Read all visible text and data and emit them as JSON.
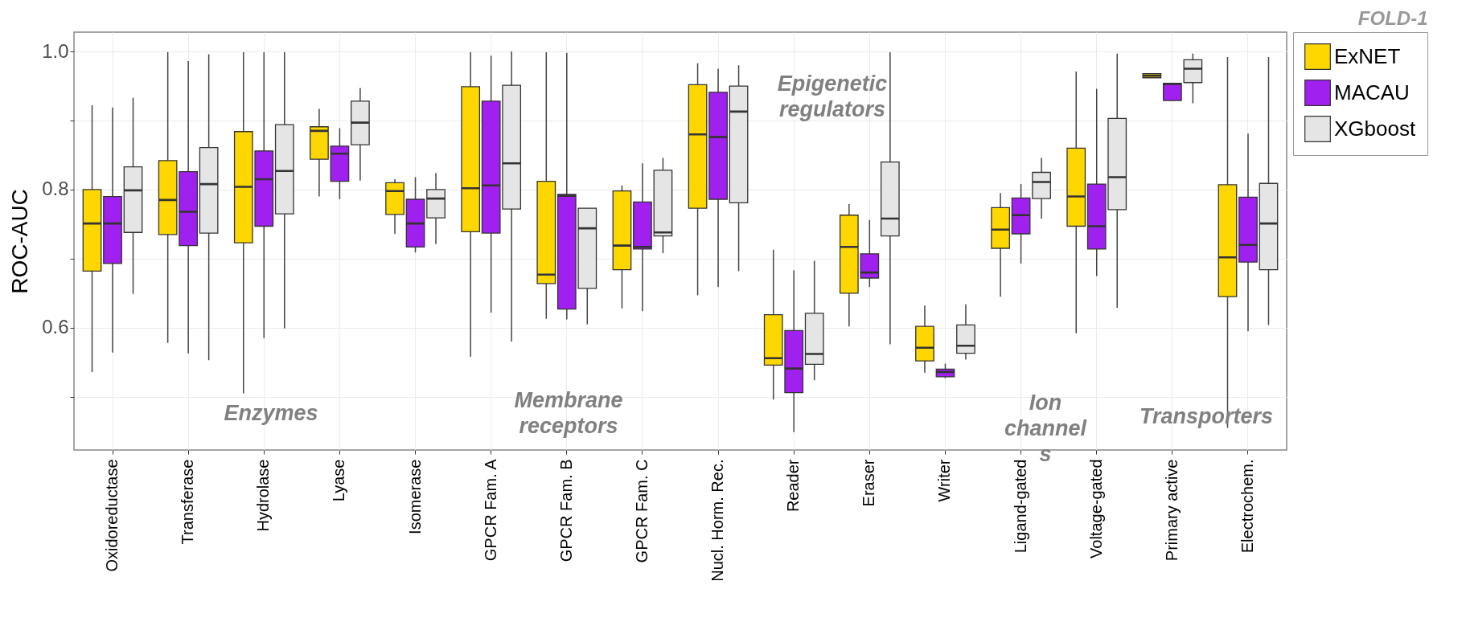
{
  "chart_data": {
    "type": "box",
    "title": "FOLD-1",
    "ylabel": "ROC-AUC",
    "categories": [
      "Oxidoreductase",
      "Transferase",
      "Hydrolase",
      "Lyase",
      "Isomerase",
      "GPCR Fam. A",
      "GPCR Fam. B",
      "GPCR Fam. C",
      "Nucl. Horm. Rec.",
      "Reader",
      "Eraser",
      "Writer",
      "Ligand-gated",
      "Voltage-gated",
      "Primary active",
      "Electrochem."
    ],
    "ylim": [
      0.423,
      1.028
    ],
    "yticks": [
      {
        "value": 0.5,
        "label": null
      },
      0.6,
      {
        "value": 0.7,
        "label": null
      },
      0.8,
      {
        "value": 0.9,
        "label": null
      },
      {
        "value": 1,
        "label": "1.0"
      }
    ],
    "grid": true,
    "legend": "top right",
    "annotations": [
      "Enzymes",
      "Membrane\nreceptors",
      "Epigenetic\nregulators",
      "Ion\nchannel\ns",
      "Transporters"
    ],
    "series": [
      {
        "name": "ExNET",
        "color": "#ffd700",
        "boxes": [
          {
            "low": 0.536,
            "q1": 0.682,
            "median": 0.751,
            "q3": 0.8,
            "high": 0.922
          },
          {
            "low": 0.578,
            "q1": 0.735,
            "median": 0.785,
            "q3": 0.842,
            "high": 0.999
          },
          {
            "low": 0.505,
            "q1": 0.723,
            "median": 0.804,
            "q3": 0.884,
            "high": 0.999
          },
          {
            "low": 0.79,
            "q1": 0.844,
            "median": 0.885,
            "q3": 0.891,
            "high": 0.917
          },
          {
            "low": 0.736,
            "q1": 0.764,
            "median": 0.798,
            "q3": 0.81,
            "high": 0.815
          },
          {
            "low": 0.558,
            "q1": 0.739,
            "median": 0.802,
            "q3": 0.949,
            "high": 0.999
          },
          {
            "low": 0.613,
            "q1": 0.664,
            "median": 0.677,
            "q3": 0.812,
            "high": 0.999
          },
          {
            "low": 0.628,
            "q1": 0.684,
            "median": 0.719,
            "q3": 0.798,
            "high": 0.806
          },
          {
            "low": 0.647,
            "q1": 0.773,
            "median": 0.88,
            "q3": 0.952,
            "high": 0.983
          },
          {
            "low": 0.496,
            "q1": 0.546,
            "median": 0.556,
            "q3": 0.619,
            "high": 0.713
          },
          {
            "low": 0.602,
            "q1": 0.65,
            "median": 0.717,
            "q3": 0.763,
            "high": 0.779
          },
          {
            "low": 0.535,
            "q1": 0.552,
            "median": 0.571,
            "q3": 0.602,
            "high": 0.632
          },
          {
            "low": 0.645,
            "q1": 0.715,
            "median": 0.742,
            "q3": 0.774,
            "high": 0.795
          },
          {
            "low": 0.592,
            "q1": 0.747,
            "median": 0.79,
            "q3": 0.86,
            "high": 0.971
          },
          {
            "low": 0.962,
            "q1": 0.962,
            "median": 0.965,
            "q3": 0.968,
            "high": 0.968
          },
          {
            "low": 0.455,
            "q1": 0.645,
            "median": 0.702,
            "q3": 0.807,
            "high": 0.992
          }
        ]
      },
      {
        "name": "MACAU",
        "color": "#a020f0",
        "boxes": [
          {
            "low": 0.564,
            "q1": 0.693,
            "median": 0.751,
            "q3": 0.79,
            "high": 0.919
          },
          {
            "low": 0.563,
            "q1": 0.719,
            "median": 0.768,
            "q3": 0.826,
            "high": 0.986
          },
          {
            "low": 0.585,
            "q1": 0.747,
            "median": 0.815,
            "q3": 0.856,
            "high": 0.999
          },
          {
            "low": 0.786,
            "q1": 0.812,
            "median": 0.852,
            "q3": 0.863,
            "high": 0.889
          },
          {
            "low": 0.709,
            "q1": 0.717,
            "median": 0.751,
            "q3": 0.786,
            "high": 0.818
          },
          {
            "low": 0.622,
            "q1": 0.737,
            "median": 0.806,
            "q3": 0.928,
            "high": 0.994
          },
          {
            "low": 0.612,
            "q1": 0.627,
            "median": 0.791,
            "q3": 0.793,
            "high": 0.998
          },
          {
            "low": 0.624,
            "q1": 0.714,
            "median": 0.717,
            "q3": 0.782,
            "high": 0.838
          },
          {
            "low": 0.659,
            "q1": 0.786,
            "median": 0.876,
            "q3": 0.941,
            "high": 0.975
          },
          {
            "low": 0.449,
            "q1": 0.506,
            "median": 0.541,
            "q3": 0.596,
            "high": 0.683
          },
          {
            "low": 0.659,
            "q1": 0.672,
            "median": 0.68,
            "q3": 0.707,
            "high": 0.756
          },
          {
            "low": 0.527,
            "q1": 0.529,
            "median": 0.536,
            "q3": 0.54,
            "high": 0.548
          },
          {
            "low": 0.693,
            "q1": 0.736,
            "median": 0.763,
            "q3": 0.788,
            "high": 0.808
          },
          {
            "low": 0.675,
            "q1": 0.714,
            "median": 0.747,
            "q3": 0.808,
            "high": 0.946
          },
          {
            "low": 0.929,
            "q1": 0.929,
            "median": 0.953,
            "q3": 0.954,
            "high": 0.954
          },
          {
            "low": 0.595,
            "q1": 0.695,
            "median": 0.72,
            "q3": 0.789,
            "high": 0.881
          }
        ]
      },
      {
        "name": "XGboost",
        "color": "#e5e5e5",
        "boxes": [
          {
            "low": 0.649,
            "q1": 0.738,
            "median": 0.799,
            "q3": 0.833,
            "high": 0.933
          },
          {
            "low": 0.553,
            "q1": 0.737,
            "median": 0.808,
            "q3": 0.861,
            "high": 0.996
          },
          {
            "low": 0.599,
            "q1": 0.765,
            "median": 0.827,
            "q3": 0.894,
            "high": 0.999
          },
          {
            "low": 0.813,
            "q1": 0.865,
            "median": 0.897,
            "q3": 0.928,
            "high": 0.947
          },
          {
            "low": 0.721,
            "q1": 0.759,
            "median": 0.787,
            "q3": 0.8,
            "high": 0.824
          },
          {
            "low": 0.58,
            "q1": 0.772,
            "median": 0.838,
            "q3": 0.951,
            "high": 1.0
          },
          {
            "low": 0.605,
            "q1": 0.657,
            "median": 0.744,
            "q3": 0.773,
            "high": 0.773
          },
          {
            "low": 0.708,
            "q1": 0.733,
            "median": 0.738,
            "q3": 0.828,
            "high": 0.846
          },
          {
            "low": 0.682,
            "q1": 0.781,
            "median": 0.913,
            "q3": 0.95,
            "high": 0.98
          },
          {
            "low": 0.524,
            "q1": 0.547,
            "median": 0.562,
            "q3": 0.621,
            "high": 0.697
          },
          {
            "low": 0.576,
            "q1": 0.733,
            "median": 0.758,
            "q3": 0.84,
            "high": 0.999
          },
          {
            "low": 0.554,
            "q1": 0.563,
            "median": 0.574,
            "q3": 0.604,
            "high": 0.634
          },
          {
            "low": 0.758,
            "q1": 0.787,
            "median": 0.811,
            "q3": 0.825,
            "high": 0.846
          },
          {
            "low": 0.629,
            "q1": 0.771,
            "median": 0.818,
            "q3": 0.903,
            "high": 0.997
          },
          {
            "low": 0.925,
            "q1": 0.955,
            "median": 0.975,
            "q3": 0.988,
            "high": 0.997
          },
          {
            "low": 0.604,
            "q1": 0.684,
            "median": 0.751,
            "q3": 0.809,
            "high": 0.992
          }
        ]
      }
    ]
  }
}
